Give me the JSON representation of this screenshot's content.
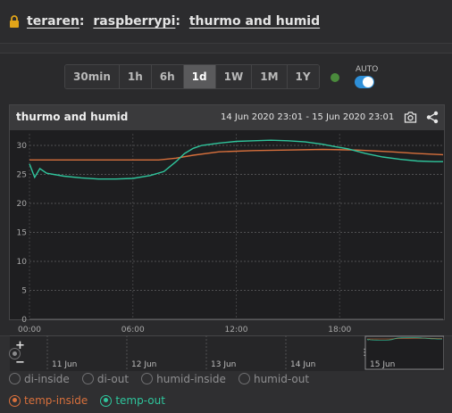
{
  "header": {
    "lock_icon": "lock-icon",
    "crumbs": [
      {
        "label": "teraren"
      },
      {
        "label": "raspberrypi"
      },
      {
        "label": "thurmo and humid"
      }
    ],
    "separator": ":"
  },
  "time_range": {
    "options": [
      "30min",
      "1h",
      "6h",
      "1d",
      "1W",
      "1M",
      "1Y"
    ],
    "selected": "1d"
  },
  "auto_refresh": {
    "label": "AUTO",
    "enabled": true,
    "status_color": "#4a8a3c"
  },
  "chart_card": {
    "title": "thurmo and humid",
    "range_text": "14 Jun 2020 23:01 - 15 Jun 2020 23:01",
    "actions": [
      "camera-icon",
      "share-icon"
    ]
  },
  "chart_data": {
    "type": "line",
    "x_ticks": [
      "00:00",
      "06:00",
      "12:00",
      "18:00"
    ],
    "x_range_hours": [
      0,
      24
    ],
    "y_ticks": [
      0,
      5,
      10,
      15,
      20,
      25,
      30
    ],
    "ylim": [
      0,
      32
    ],
    "grid": true,
    "series": [
      {
        "name": "temp-inside",
        "color": "#d8703c",
        "x_hours": [
          0,
          2,
          4,
          6,
          7.5,
          8.5,
          9.5,
          11,
          13,
          15,
          17,
          19,
          21,
          22.5,
          24
        ],
        "values": [
          27.5,
          27.5,
          27.5,
          27.5,
          27.5,
          27.8,
          28.3,
          28.9,
          29.1,
          29.2,
          29.3,
          29.2,
          28.9,
          28.6,
          28.4
        ]
      },
      {
        "name": "temp-out",
        "color": "#2fc59c",
        "x_hours": [
          0,
          0.3,
          0.6,
          1,
          2,
          3,
          4,
          5,
          6,
          7,
          7.8,
          8.5,
          9,
          9.5,
          10,
          11,
          12,
          13,
          14,
          15,
          16,
          17,
          17.7,
          18.5,
          19.5,
          20.5,
          21.5,
          22.5,
          23.5,
          24
        ],
        "values": [
          26.8,
          24.5,
          26.0,
          25.2,
          24.7,
          24.4,
          24.2,
          24.2,
          24.3,
          24.8,
          25.5,
          27.2,
          28.6,
          29.5,
          30.0,
          30.4,
          30.7,
          30.8,
          30.9,
          30.8,
          30.6,
          30.2,
          29.8,
          29.4,
          28.6,
          28.0,
          27.6,
          27.3,
          27.2,
          27.2
        ]
      }
    ]
  },
  "navigator": {
    "labels": [
      "11 Jun",
      "12 Jun",
      "13 Jun",
      "14 Jun",
      "15 Jun"
    ],
    "zoom_in": "+",
    "zoom_out": "−"
  },
  "legend": {
    "all_icon": "radio-all",
    "items": [
      {
        "name": "di-inside",
        "active": false,
        "color": "#8e8e90"
      },
      {
        "name": "di-out",
        "active": false,
        "color": "#8e8e90"
      },
      {
        "name": "humid-inside",
        "active": false,
        "color": "#8e8e90"
      },
      {
        "name": "humid-out",
        "active": false,
        "color": "#8e8e90"
      },
      {
        "name": "temp-inside",
        "active": true,
        "color": "#d8703c"
      },
      {
        "name": "temp-out",
        "active": true,
        "color": "#2fc59c"
      }
    ]
  }
}
